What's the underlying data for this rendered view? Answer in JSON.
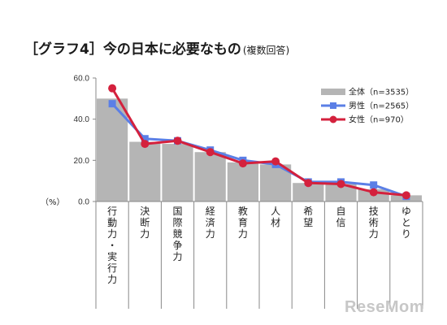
{
  "header": {
    "title": "［グラフ4］今の日本に必要なもの",
    "subtitle": "(複数回答)"
  },
  "brand": {
    "logo_text": "ReseMom"
  },
  "colors": {
    "bar": "#b5b5b5",
    "male": "#5b7fe6",
    "female": "#d4213d",
    "axis": "#888888"
  },
  "chart_data": {
    "type": "bar",
    "unit_label": "（%）",
    "ylim": [
      0,
      60
    ],
    "yticks": [
      "0.0",
      "20.0",
      "40.0",
      "60.0"
    ],
    "grid": false,
    "legend_position": "top-right",
    "categories": [
      "行動力・実行力",
      "決断力",
      "国際競争力",
      "経済力",
      "教育力",
      "人材",
      "希望",
      "自信",
      "技術力",
      "ゆとり"
    ],
    "series": [
      {
        "name": "全体（n=3535）",
        "kind": "bar",
        "values": [
          50.0,
          29.0,
          28.0,
          24.0,
          19.0,
          18.0,
          9.0,
          8.5,
          6.0,
          3.0
        ]
      },
      {
        "name": "男性（n=2565）",
        "kind": "line",
        "marker": "square",
        "values": [
          47.5,
          30.5,
          29.5,
          25.0,
          20.0,
          18.0,
          9.5,
          9.5,
          8.0,
          2.5
        ]
      },
      {
        "name": "女性（n=970）",
        "kind": "line",
        "marker": "circle",
        "values": [
          55.0,
          28.0,
          29.5,
          24.0,
          18.5,
          19.5,
          9.0,
          8.5,
          4.5,
          3.0
        ]
      }
    ]
  }
}
